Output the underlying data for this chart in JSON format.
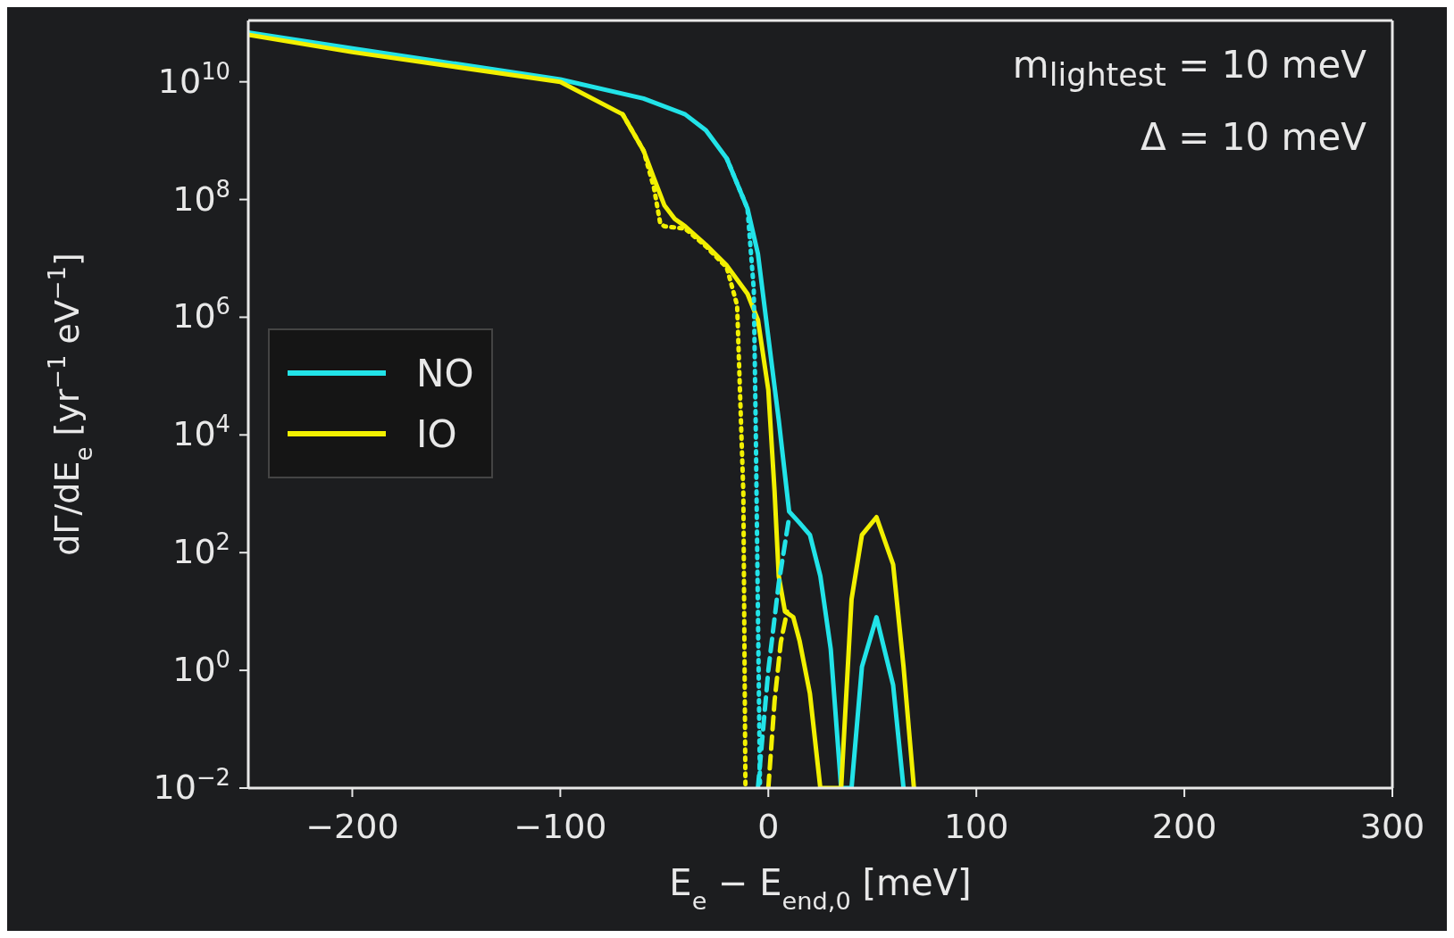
{
  "chart_data": {
    "type": "line",
    "xlabel": "E$_{e}$ − E$_{end,0}$ [meV]",
    "ylabel": "dΓ/dE$_{e}$ [yr$^{−1}$ eV$^{−1}$]",
    "annotations": [
      "m$_{lightest}$ = 10 meV",
      "Δ = 10 meV"
    ],
    "log": "y",
    "legend": "center left",
    "marker": "none",
    "xlim": [
      -250,
      300
    ],
    "xticks": [
      -200,
      -100,
      0,
      100,
      200,
      300
    ],
    "ylim": [
      0.01,
      110000000000.0
    ],
    "yticks": [
      {
        "value": 0.01,
        "label": "10$^{−2}$"
      },
      {
        "value": 1,
        "label": "10$^{0}$"
      },
      {
        "value": 100,
        "label": "10$^{2}$"
      },
      {
        "value": 10000,
        "label": "10$^{4}$"
      },
      {
        "value": 1000000,
        "label": "10$^{6}$"
      },
      {
        "value": 100000000,
        "label": "10$^{8}$"
      },
      {
        "value": 10000000000,
        "label": "10$^{10}$"
      }
    ],
    "series": [
      {
        "name": "NO",
        "color": "#22e3e8",
        "line_style": "solid",
        "x": [
          -250,
          -200,
          -100,
          -60,
          -40,
          -30,
          -20,
          -10,
          -5,
          0,
          5,
          10,
          15,
          20,
          25,
          30,
          35,
          40,
          45,
          52,
          60,
          65
        ],
        "values": [
          69000000000.0,
          37000000000.0,
          11000000000.0,
          5200000000.0,
          2800000000.0,
          1500000000.0,
          500000000.0,
          70000000.0,
          12000000.0,
          460000.0,
          18000.0,
          500,
          320,
          200,
          40,
          2.3,
          0.01,
          0.01,
          1.15,
          8,
          0.56,
          0.01
        ]
      },
      {
        "name": "IO",
        "color": "#f2f000",
        "line_style": "solid",
        "x": [
          -250,
          -200,
          -100,
          -70,
          -60,
          -55,
          -50,
          -45,
          -40,
          -30,
          -20,
          -10,
          -5,
          0,
          3,
          5,
          8,
          12,
          15,
          20,
          25,
          35,
          40,
          45,
          52,
          60,
          65,
          70
        ],
        "values": [
          63000000000.0,
          32000000000.0,
          10000000000.0,
          2800000000.0,
          680000000.0,
          230000000.0,
          80000000.0,
          47000000.0,
          35000000.0,
          17000000.0,
          7600000.0,
          2500000.0,
          900000.0,
          58000.0,
          1100,
          40,
          10,
          8,
          3.2,
          0.4,
          0.01,
          0.01,
          16,
          200,
          400,
          63,
          1.15,
          0.01
        ]
      },
      {
        "color": "#f2f000",
        "line_style": "dotted",
        "x": [
          -70,
          -60,
          -55,
          -52,
          -50,
          -40,
          -30,
          -20,
          -15,
          -12,
          -11
        ],
        "values": [
          2800000000.0,
          680000000.0,
          160000000.0,
          40000000.0,
          35000000.0,
          32000000.0,
          16000000.0,
          7000000.0,
          1600000.0,
          1000,
          0.01
        ]
      },
      {
        "color": "#22e3e8",
        "line_style": "dotted",
        "x": [
          -20,
          -10,
          -7,
          -6,
          -5,
          -4
        ],
        "values": [
          500000000.0,
          70000000.0,
          3000000.0,
          10000,
          10,
          0.01
        ]
      },
      {
        "color": "#22e3e8",
        "line_style": "dashed",
        "x": [
          -5,
          0,
          5,
          10
        ],
        "values": [
          0.01,
          1,
          30,
          400
        ]
      },
      {
        "color": "#f2f000",
        "line_style": "dashed",
        "x": [
          0,
          3,
          6,
          9
        ],
        "values": [
          0.01,
          0.3,
          3,
          10
        ]
      }
    ]
  }
}
